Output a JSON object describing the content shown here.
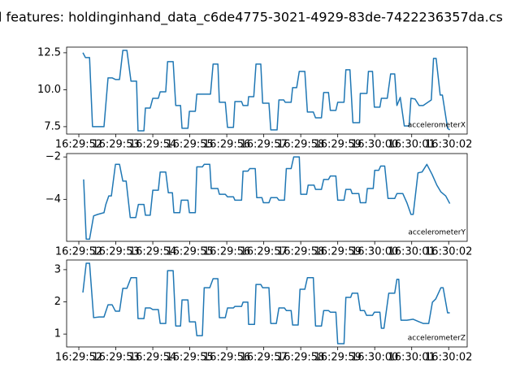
{
  "title": "l features: holdinginhand_data_c6de4775-3021-4929-83de-7422236357da.cs",
  "chart_data": [
    {
      "type": "line",
      "x": [
        52.11,
        52.18,
        52.29,
        52.37,
        52.68,
        52.79,
        52.9,
        52.99,
        53.1,
        53.19,
        53.3,
        53.41,
        53.56,
        53.6,
        53.76,
        53.8,
        53.93,
        54.0,
        54.15,
        54.2,
        54.35,
        54.4,
        54.55,
        54.62,
        54.75,
        54.79,
        54.95,
        54.99,
        55.15,
        55.19,
        55.56,
        55.63,
        55.76,
        55.8,
        55.96,
        56.02,
        56.18,
        56.22,
        56.4,
        56.44,
        56.57,
        56.59,
        56.73,
        56.79,
        56.92,
        56.97,
        57.14,
        57.19,
        57.36,
        57.41,
        57.54,
        57.58,
        57.74,
        57.78,
        57.89,
        57.96,
        58.11,
        58.18,
        58.34,
        58.4,
        58.56,
        58.62,
        58.75,
        58.8,
        58.95,
        59.0,
        59.17,
        59.22,
        59.33,
        59.41,
        59.59,
        59.61,
        59.79,
        59.83,
        59.94,
        59.99,
        60.14,
        60.18,
        60.34,
        60.43,
        60.54,
        60.6,
        60.69,
        60.8,
        60.93,
        60.98,
        61.09,
        61.2,
        61.31,
        61.53,
        61.59,
        61.66,
        61.77,
        61.83,
        61.97,
        62.03
      ],
      "series": [
        {
          "name": "accelerometerX",
          "color": "#1f77b4",
          "values": [
            12.5,
            12.17,
            12.17,
            7.5,
            7.5,
            10.8,
            10.8,
            10.69,
            10.69,
            12.66,
            12.66,
            10.58,
            10.58,
            7.22,
            7.22,
            8.76,
            8.76,
            9.42,
            9.42,
            9.86,
            9.86,
            11.9,
            11.9,
            8.93,
            8.93,
            7.39,
            7.39,
            8.54,
            8.54,
            9.7,
            9.7,
            11.73,
            11.73,
            9.15,
            9.15,
            7.45,
            7.45,
            9.2,
            9.2,
            8.93,
            8.93,
            9.53,
            9.53,
            11.73,
            11.73,
            9.09,
            9.09,
            7.28,
            7.28,
            9.31,
            9.31,
            9.15,
            9.15,
            10.14,
            10.14,
            11.24,
            11.24,
            8.49,
            8.49,
            8.1,
            8.1,
            9.81,
            9.81,
            8.6,
            8.6,
            9.15,
            9.15,
            11.35,
            11.35,
            7.77,
            7.77,
            9.75,
            9.75,
            11.24,
            11.24,
            8.82,
            8.82,
            9.42,
            9.42,
            11.07,
            11.07,
            8.93,
            9.48,
            7.55,
            7.55,
            9.42,
            9.37,
            8.93,
            8.93,
            9.31,
            12.12,
            12.12,
            9.64,
            9.64,
            7.39,
            7.28
          ]
        }
      ],
      "xlim": [
        51.67,
        62.5
      ],
      "ylim": [
        7.0,
        12.88
      ],
      "xticks": [
        {
          "value": 52,
          "label": "16:29:52"
        },
        {
          "value": 53,
          "label": "16:29:53"
        },
        {
          "value": 54,
          "label": "16:29:54"
        },
        {
          "value": 55,
          "label": "16:29:55"
        },
        {
          "value": 56,
          "label": "16:29:56"
        },
        {
          "value": 57,
          "label": "16:29:57"
        },
        {
          "value": 58,
          "label": "16:29:58"
        },
        {
          "value": 59,
          "label": "16:29:59"
        },
        {
          "value": 60,
          "label": "16:30:00"
        },
        {
          "value": 61,
          "label": "16:30:01"
        },
        {
          "value": 62,
          "label": "16:30:02"
        }
      ],
      "yticks": [
        7.5,
        {
          "value": 10,
          "label": "10.0"
        },
        12.5
      ],
      "legend": "lower right"
    },
    {
      "type": "line",
      "x": [
        52.13,
        52.2,
        52.29,
        52.4,
        52.51,
        52.68,
        52.73,
        52.81,
        52.88,
        52.99,
        53.1,
        53.19,
        53.28,
        53.39,
        53.54,
        53.61,
        53.76,
        53.8,
        53.93,
        54.0,
        54.15,
        54.2,
        54.35,
        54.42,
        54.53,
        54.57,
        54.73,
        54.77,
        54.95,
        54.99,
        55.15,
        55.19,
        55.34,
        55.39,
        55.54,
        55.58,
        55.76,
        55.8,
        55.96,
        56.02,
        56.18,
        56.22,
        56.4,
        56.44,
        56.57,
        56.62,
        56.77,
        56.81,
        56.95,
        56.99,
        57.14,
        57.19,
        57.36,
        57.41,
        57.56,
        57.61,
        57.74,
        57.81,
        57.96,
        58.0,
        58.16,
        58.2,
        58.36,
        58.4,
        58.56,
        58.62,
        58.75,
        58.8,
        58.95,
        59.0,
        59.17,
        59.22,
        59.35,
        59.39,
        59.57,
        59.61,
        59.76,
        59.8,
        59.96,
        60.0,
        60.11,
        60.16,
        60.27,
        60.36,
        60.54,
        60.6,
        60.76,
        60.87,
        60.98,
        61.04,
        61.17,
        61.28,
        61.41,
        61.55,
        61.68,
        61.79,
        61.92,
        62.03
      ],
      "series": [
        {
          "name": "accelerometerY",
          "color": "#1f77b4",
          "values": [
            -3.06,
            -5.88,
            -5.88,
            -4.78,
            -4.71,
            -4.63,
            -4.24,
            -3.84,
            -3.84,
            -2.35,
            -2.35,
            -3.14,
            -3.14,
            -4.86,
            -4.86,
            -4.24,
            -4.24,
            -4.75,
            -4.75,
            -3.57,
            -3.57,
            -2.71,
            -2.71,
            -3.69,
            -3.69,
            -4.63,
            -4.63,
            -4.04,
            -4.04,
            -4.63,
            -4.63,
            -2.47,
            -2.47,
            -2.35,
            -2.35,
            -3.49,
            -3.49,
            -3.76,
            -3.76,
            -3.88,
            -3.88,
            -4.04,
            -4.04,
            -2.67,
            -2.67,
            -2.55,
            -2.55,
            -3.92,
            -3.92,
            -4.16,
            -4.16,
            -3.92,
            -3.92,
            -4.04,
            -4.04,
            -2.55,
            -2.55,
            -2.0,
            -2.0,
            -3.76,
            -3.76,
            -3.33,
            -3.33,
            -3.53,
            -3.53,
            -3.06,
            -3.06,
            -2.9,
            -2.9,
            -4.04,
            -4.04,
            -3.53,
            -3.53,
            -3.73,
            -3.73,
            -4.16,
            -4.16,
            -3.49,
            -3.49,
            -2.63,
            -2.63,
            -2.43,
            -2.43,
            -3.96,
            -3.96,
            -3.73,
            -3.73,
            -4.16,
            -4.71,
            -4.71,
            -2.75,
            -2.71,
            -2.35,
            -2.82,
            -3.33,
            -3.65,
            -3.84,
            -4.2
          ]
        }
      ],
      "xlim": [
        51.67,
        62.5
      ],
      "ylim": [
        -5.98,
        -1.84
      ],
      "xticks": [
        {
          "value": 52,
          "label": "16:29:52"
        },
        {
          "value": 53,
          "label": "16:29:53"
        },
        {
          "value": 54,
          "label": "16:29:54"
        },
        {
          "value": 55,
          "label": "16:29:55"
        },
        {
          "value": 56,
          "label": "16:29:56"
        },
        {
          "value": 57,
          "label": "16:29:57"
        },
        {
          "value": 58,
          "label": "16:29:58"
        },
        {
          "value": 59,
          "label": "16:29:59"
        },
        {
          "value": 60,
          "label": "16:30:00"
        },
        {
          "value": 61,
          "label": "16:30:01"
        },
        {
          "value": 62,
          "label": "16:30:02"
        }
      ],
      "yticks": [
        {
          "value": -4,
          "label": "−4"
        },
        {
          "value": -2,
          "label": "−2"
        }
      ],
      "legend": "lower right"
    },
    {
      "type": "line",
      "x": [
        52.11,
        52.2,
        52.29,
        52.4,
        52.55,
        52.68,
        52.79,
        52.9,
        52.99,
        53.1,
        53.19,
        53.3,
        53.41,
        53.56,
        53.6,
        53.76,
        53.8,
        53.93,
        54.0,
        54.15,
        54.2,
        54.35,
        54.4,
        54.55,
        54.62,
        54.75,
        54.79,
        54.95,
        54.99,
        55.15,
        55.19,
        55.34,
        55.39,
        55.54,
        55.63,
        55.76,
        55.8,
        55.96,
        56.02,
        56.18,
        56.22,
        56.4,
        56.44,
        56.57,
        56.59,
        56.75,
        56.79,
        56.92,
        56.97,
        57.14,
        57.19,
        57.34,
        57.41,
        57.56,
        57.61,
        57.74,
        57.78,
        57.93,
        57.98,
        58.11,
        58.18,
        58.34,
        58.4,
        58.56,
        58.62,
        58.75,
        58.8,
        58.95,
        59.0,
        59.17,
        59.22,
        59.35,
        59.39,
        59.54,
        59.61,
        59.72,
        59.78,
        59.94,
        59.99,
        60.14,
        60.18,
        60.25,
        60.38,
        60.54,
        60.6,
        60.65,
        60.71,
        60.87,
        61.04,
        61.2,
        61.31,
        61.46,
        61.56,
        61.65,
        61.79,
        61.85,
        61.97,
        62.03
      ],
      "series": [
        {
          "name": "accelerometerZ",
          "color": "#1f77b4",
          "values": [
            2.29,
            3.2,
            3.2,
            1.51,
            1.53,
            1.53,
            1.91,
            1.91,
            1.71,
            1.71,
            2.42,
            2.42,
            2.75,
            2.75,
            1.48,
            1.48,
            1.81,
            1.81,
            1.76,
            1.76,
            1.33,
            1.33,
            2.97,
            2.97,
            1.25,
            1.25,
            2.06,
            2.06,
            1.38,
            1.38,
            0.95,
            0.95,
            2.44,
            2.44,
            2.72,
            2.72,
            1.51,
            1.51,
            1.81,
            1.81,
            1.86,
            1.86,
            1.99,
            1.99,
            1.3,
            1.3,
            2.54,
            2.54,
            2.44,
            2.44,
            1.33,
            1.33,
            1.81,
            1.81,
            1.73,
            1.73,
            1.28,
            1.28,
            2.39,
            2.39,
            2.75,
            2.75,
            1.25,
            1.25,
            1.73,
            1.73,
            1.68,
            1.68,
            0.7,
            0.7,
            2.14,
            2.14,
            2.27,
            2.27,
            1.73,
            1.73,
            1.58,
            1.58,
            1.68,
            1.68,
            1.18,
            1.18,
            2.27,
            2.27,
            2.7,
            2.7,
            1.43,
            1.43,
            1.46,
            1.38,
            1.33,
            1.33,
            1.99,
            2.09,
            2.44,
            2.44,
            1.66,
            1.66
          ]
        }
      ],
      "xlim": [
        51.67,
        62.5
      ],
      "ylim": [
        0.6,
        3.3
      ],
      "xticks": [
        {
          "value": 52,
          "label": "16:29:52"
        },
        {
          "value": 53,
          "label": "16:29:53"
        },
        {
          "value": 54,
          "label": "16:29:54"
        },
        {
          "value": 55,
          "label": "16:29:55"
        },
        {
          "value": 56,
          "label": "16:29:56"
        },
        {
          "value": 57,
          "label": "16:29:57"
        },
        {
          "value": 58,
          "label": "16:29:58"
        },
        {
          "value": 59,
          "label": "16:29:59"
        },
        {
          "value": 60,
          "label": "16:30:00"
        },
        {
          "value": 61,
          "label": "16:30:01"
        },
        {
          "value": 62,
          "label": "16:30:02"
        }
      ],
      "yticks": [
        1,
        2,
        3
      ],
      "legend": "lower right"
    }
  ]
}
